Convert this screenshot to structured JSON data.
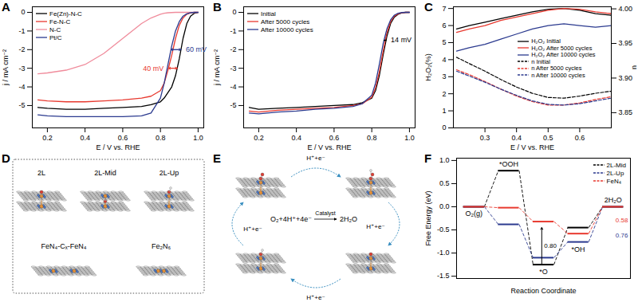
{
  "chart_data": [
    {
      "panel": "A",
      "type": "line",
      "x_label": "E / V vs. RHE",
      "y_label": "j / mA cm⁻²",
      "x": [
        0.15,
        0.2,
        0.3,
        0.4,
        0.5,
        0.6,
        0.7,
        0.75,
        0.8,
        0.82,
        0.84,
        0.86,
        0.88,
        0.9,
        0.92,
        0.94,
        0.96,
        0.98,
        1.0
      ],
      "series": [
        {
          "name": "Fe(Zn)-N-C",
          "color": "#000000",
          "values": [
            -5.1,
            -5.15,
            -5.2,
            -5.2,
            -5.15,
            -5.1,
            -5.05,
            -4.95,
            -4.8,
            -4.6,
            -4.3,
            -4.0,
            -3.4,
            -2.5,
            -1.4,
            -0.6,
            -0.2,
            -0.05,
            0
          ]
        },
        {
          "name": "Fe-N-C",
          "color": "#e8392f",
          "values": [
            -4.7,
            -4.75,
            -4.8,
            -4.8,
            -4.75,
            -4.7,
            -4.6,
            -4.5,
            -4.2,
            -3.8,
            -3.1,
            -2.3,
            -1.4,
            -0.7,
            -0.3,
            -0.1,
            -0.03,
            0,
            0
          ]
        },
        {
          "name": "N-C",
          "color": "#f08c9c",
          "values": [
            -3.3,
            -3.25,
            -3.1,
            -2.8,
            -2.2,
            -1.4,
            -0.6,
            -0.3,
            -0.1,
            -0.05,
            -0.02,
            -0.01,
            0,
            0,
            0,
            0,
            0,
            0,
            0
          ]
        },
        {
          "name": "Pt/C",
          "color": "#2b3a8f",
          "values": [
            -5.5,
            -5.55,
            -5.6,
            -5.6,
            -5.6,
            -5.6,
            -5.55,
            -5.4,
            -4.6,
            -3.8,
            -2.8,
            -1.8,
            -1.0,
            -0.5,
            -0.2,
            -0.08,
            -0.02,
            0,
            0
          ]
        }
      ],
      "xlim": [
        0.12,
        1.03
      ],
      "xticks": [
        0.2,
        0.4,
        0.6,
        0.8,
        {
          "value": 1,
          "label": "1.0"
        }
      ],
      "ylim": [
        -6.2,
        0.3
      ],
      "yticks": [
        0,
        -1,
        -2,
        -3,
        -4,
        -5
      ],
      "legend": "upper left",
      "annotations": [
        {
          "text": "40 mV",
          "color": "#e8392f",
          "x": [
            0.843,
            0.889
          ],
          "y": -3.0
        },
        {
          "text": "60 mV",
          "color": "#2b3a8f",
          "x": [
            0.856,
            0.909
          ],
          "y": -2.0
        }
      ]
    },
    {
      "panel": "B",
      "type": "line",
      "x_label": "E / V vs. RHE",
      "y_label": "j / mA cm⁻²",
      "x": [
        0.15,
        0.2,
        0.3,
        0.4,
        0.5,
        0.6,
        0.7,
        0.75,
        0.8,
        0.82,
        0.84,
        0.86,
        0.88,
        0.9,
        0.92,
        0.94,
        0.96,
        0.98,
        1.0
      ],
      "series": [
        {
          "name": "Initial",
          "color": "#000000",
          "values": [
            -5.1,
            -5.2,
            -5.15,
            -5.1,
            -5.05,
            -5.0,
            -4.95,
            -4.85,
            -4.6,
            -4.2,
            -3.4,
            -2.3,
            -1.3,
            -0.6,
            -0.25,
            -0.1,
            -0.03,
            0,
            0
          ]
        },
        {
          "name": "After 5000 cycles",
          "color": "#e8392f",
          "values": [
            -5.3,
            -5.35,
            -5.25,
            -5.2,
            -5.15,
            -5.1,
            -5.0,
            -4.9,
            -4.55,
            -4.05,
            -3.2,
            -2.1,
            -1.1,
            -0.5,
            -0.2,
            -0.08,
            -0.02,
            0,
            0
          ]
        },
        {
          "name": "After 10000 cycles",
          "color": "#2b3a8f",
          "values": [
            -5.4,
            -5.45,
            -5.35,
            -5.3,
            -5.2,
            -5.15,
            -5.05,
            -4.9,
            -4.45,
            -3.8,
            -2.8,
            -1.7,
            -0.9,
            -0.4,
            -0.15,
            -0.05,
            -0.01,
            0,
            0
          ]
        }
      ],
      "xlim": [
        0.12,
        1.03
      ],
      "xticks": [
        0.2,
        0.4,
        0.6,
        0.8,
        {
          "value": 1,
          "label": "1.0"
        }
      ],
      "ylim": [
        -6.2,
        0.3
      ],
      "yticks": [
        0,
        -1,
        -2,
        -3,
        -4,
        -5
      ],
      "legend": "upper left",
      "annotations": [
        {
          "text": "14 mV",
          "color": "#000000",
          "x": [
            0.865,
            0.876
          ],
          "y": -1.5
        }
      ]
    },
    {
      "panel": "C",
      "type": "line",
      "x_label": "E / V vs. RHE",
      "y_label": "H₂O₂(%)",
      "y2_label": "n",
      "x": [
        0.21,
        0.25,
        0.3,
        0.35,
        0.4,
        0.45,
        0.5,
        0.55,
        0.6,
        0.65,
        0.7
      ],
      "series": [
        {
          "name": "H₂O₂ Initial",
          "color": "#000000",
          "values": [
            5.8,
            6.0,
            6.2,
            6.4,
            6.6,
            6.8,
            6.95,
            7.0,
            6.9,
            6.7,
            6.6
          ]
        },
        {
          "name": "H₂O₂ After 5000 cycles",
          "color": "#e8392f",
          "values": [
            5.6,
            5.8,
            6.0,
            6.3,
            6.5,
            6.7,
            6.9,
            7.0,
            6.95,
            6.8,
            6.7
          ]
        },
        {
          "name": "H₂O₂ After 10000 cycles",
          "color": "#2b3a8f",
          "values": [
            4.5,
            4.7,
            4.9,
            5.2,
            5.5,
            5.8,
            6.0,
            6.1,
            6.0,
            5.9,
            6.0
          ]
        },
        {
          "name": "n Initial",
          "color": "#000000",
          "axis": "y2",
          "line_style": "dashed",
          "values": [
            3.93,
            3.921,
            3.91,
            3.898,
            3.887,
            3.878,
            3.872,
            3.871,
            3.874,
            3.878,
            3.881
          ]
        },
        {
          "name": "n After 5000 cycles",
          "color": "#e8392f",
          "axis": "y2",
          "line_style": "dashed",
          "values": [
            3.912,
            3.905,
            3.895,
            3.884,
            3.874,
            3.866,
            3.861,
            3.861,
            3.864,
            3.869,
            3.873
          ]
        },
        {
          "name": "n After 10000 cycles",
          "color": "#2b3a8f",
          "axis": "y2",
          "line_style": "dashed",
          "values": [
            3.91,
            3.903,
            3.894,
            3.884,
            3.875,
            3.867,
            3.862,
            3.861,
            3.863,
            3.867,
            3.871
          ]
        }
      ],
      "xlim": [
        0.2,
        0.7
      ],
      "xticks": [
        0.3,
        0.4,
        0.5,
        0.6
      ],
      "ylim": [
        0,
        7.1
      ],
      "yticks": [
        0,
        1,
        2,
        3,
        4,
        5,
        6,
        7
      ],
      "y2lim": [
        3.828,
        4.003
      ],
      "y2ticks": [
        3.85,
        {
          "value": 3.9,
          "label": "3.90"
        },
        3.95,
        {
          "value": 4,
          "label": "4.00"
        }
      ],
      "legend": "center"
    },
    {
      "panel": "F",
      "type": "step",
      "x_label": "Reaction Coordinate",
      "y_label": "Free Energy (eV)",
      "categories": [
        "O₂(g)",
        "*OOH",
        "*O",
        "*OH",
        "2H₂O"
      ],
      "series": [
        {
          "name": "2L-Mid",
          "color": "#000000",
          "line_style": "dashed",
          "values": [
            0,
            0.78,
            -1.25,
            -0.45,
            0
          ]
        },
        {
          "name": "2L-Up",
          "color": "#2b3a8f",
          "line_style": "dashed",
          "values": [
            0,
            -0.38,
            -1.1,
            -0.76,
            0
          ]
        },
        {
          "name": "FeN₄",
          "color": "#e8392f",
          "line_style": "dashed",
          "values": [
            0,
            -0.02,
            -0.32,
            -0.58,
            0
          ]
        }
      ],
      "ylim": [
        -1.55,
        1.05
      ],
      "yticks": [
        {
          "value": 1,
          "label": "1.0"
        },
        0.5,
        {
          "value": 0,
          "label": "0.0"
        },
        -0.5,
        {
          "value": -1,
          "label": "-1.0"
        },
        -1.5
      ],
      "tick_labels": "y",
      "legend": "upper right",
      "annotations": [
        {
          "text": "0.80",
          "color": "#000000",
          "x": 1.95,
          "y": [
            -1.25,
            -0.45
          ]
        },
        {
          "text": "0.58",
          "color": "#e8392f",
          "x": 4.25,
          "y": -0.3
        },
        {
          "text": "0.76",
          "color": "#2b3a8f",
          "x": 4.25,
          "y": -0.62
        }
      ]
    }
  ],
  "diagrams": [
    {
      "panel": "D",
      "labels": [
        "2L",
        "2L-Mid",
        "2L-Up",
        "FeN₄-Cₓ-FeN₄",
        "Fe₂N₆"
      ]
    },
    {
      "panel": "E",
      "step_labels": [
        "H⁺+e⁻",
        "H⁺+e⁻",
        "H⁺+e⁻",
        "H⁺+e⁻"
      ],
      "reactants": "O₂+4H⁺+4e⁻",
      "catalyst": "Catalyst",
      "products": "2H₂O"
    }
  ]
}
